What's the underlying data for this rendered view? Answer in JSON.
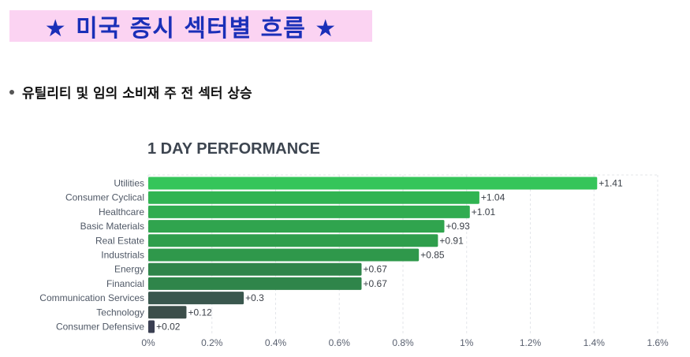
{
  "header": {
    "title": "★ 미국 증시 섹터별 흐름 ★"
  },
  "summary": {
    "bullet": "유틸리티 및 임의 소비재 주  전 섹터 상승"
  },
  "chart_data": {
    "type": "bar",
    "orientation": "horizontal",
    "title": "1 DAY PERFORMANCE",
    "categories": [
      "Utilities",
      "Consumer Cyclical",
      "Healthcare",
      "Basic Materials",
      "Real Estate",
      "Industrials",
      "Energy",
      "Financial",
      "Communication Services",
      "Technology",
      "Consumer Defensive"
    ],
    "values": [
      1.41,
      1.04,
      1.01,
      0.93,
      0.91,
      0.85,
      0.67,
      0.67,
      0.3,
      0.12,
      0.02
    ],
    "value_labels": [
      "+1.41",
      "+1.04",
      "+1.01",
      "+0.93",
      "+0.91",
      "+0.85",
      "+0.67",
      "+0.67",
      "+0.3",
      "+0.12",
      "+0.02"
    ],
    "colors": [
      "#35c55a",
      "#31b452",
      "#31ac50",
      "#30a44e",
      "#2f9e4c",
      "#2f984b",
      "#2f854a",
      "#2f854a",
      "#3a574e",
      "#3c4e4a",
      "#3a3f52"
    ],
    "xlim": [
      0,
      1.6
    ],
    "x_ticks": [
      0,
      0.2,
      0.4,
      0.6,
      0.8,
      1.0,
      1.2,
      1.4,
      1.6
    ],
    "x_tick_labels": [
      "0%",
      "0.2%",
      "0.4%",
      "0.6%",
      "0.8%",
      "1%",
      "1.2%",
      "1.4%",
      "1.6%"
    ],
    "grid": true
  }
}
